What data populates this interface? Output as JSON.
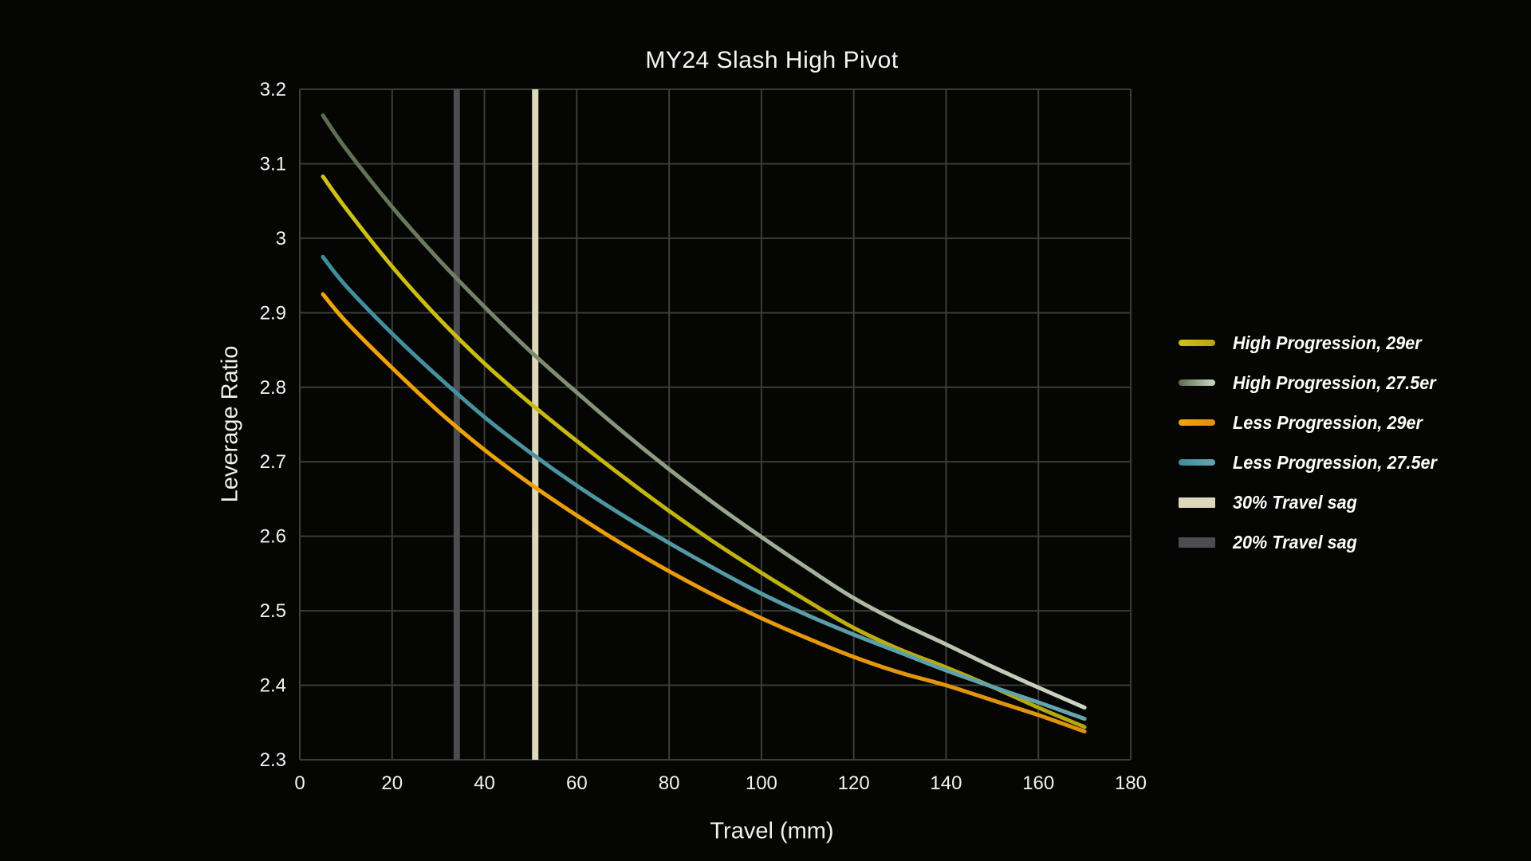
{
  "title": "MY24 Slash High Pivot",
  "chart_data": {
    "type": "line",
    "title": "MY24 Slash High Pivot",
    "xlabel": "Travel (mm)",
    "ylabel": "Leverage Ratio",
    "xlim": [
      0,
      180
    ],
    "ylim": [
      2.3,
      3.2
    ],
    "grid": true,
    "legend_position": "right",
    "background_color": "#050504",
    "grid_color": "#3c3c3a",
    "tick_text_color": "#f2f2ef",
    "xticks": [
      "0",
      "20",
      "40",
      "60",
      "80",
      "100",
      "120",
      "140",
      "160",
      "180"
    ],
    "yticks": [
      "3.2",
      "3.1",
      "3",
      "2.9",
      "2.8",
      "2.7",
      "2.6",
      "2.5",
      "2.4",
      "2.3"
    ],
    "x": [
      5,
      10,
      20,
      30,
      40,
      50,
      60,
      70,
      80,
      90,
      100,
      110,
      120,
      130,
      140,
      150,
      160,
      170
    ],
    "series": [
      {
        "name": "High Progression, 29er",
        "color_start": "#d0c112",
        "color_end": "#b3a70c",
        "values": [
          3.083,
          3.04,
          2.962,
          2.893,
          2.832,
          2.778,
          2.728,
          2.68,
          2.634,
          2.591,
          2.551,
          2.513,
          2.477,
          2.448,
          2.424,
          2.398,
          2.37,
          2.344
        ]
      },
      {
        "name": "High Progression, 27.5er",
        "color_start": "#5b6e4e",
        "color_end": "#cdd7c4",
        "values": [
          3.165,
          3.12,
          3.042,
          2.972,
          2.908,
          2.848,
          2.793,
          2.74,
          2.69,
          2.643,
          2.599,
          2.557,
          2.517,
          2.484,
          2.455,
          2.425,
          2.397,
          2.37
        ]
      },
      {
        "name": "Less Progression, 29er",
        "color_start": "#f1a40b",
        "color_end": "#de920e",
        "values": [
          2.925,
          2.888,
          2.826,
          2.768,
          2.716,
          2.67,
          2.628,
          2.589,
          2.553,
          2.52,
          2.49,
          2.463,
          2.438,
          2.417,
          2.4,
          2.38,
          2.36,
          2.338
        ]
      },
      {
        "name": "Less Progression, 27.5er",
        "color_start": "#3e8e9c",
        "color_end": "#66a5ad",
        "values": [
          2.975,
          2.936,
          2.872,
          2.814,
          2.76,
          2.712,
          2.668,
          2.628,
          2.591,
          2.556,
          2.523,
          2.494,
          2.468,
          2.444,
          2.42,
          2.398,
          2.377,
          2.355
        ]
      }
    ],
    "vlines": [
      {
        "name": "30% Travel sag",
        "x": 51,
        "color": "#ded8ba",
        "width": 8
      },
      {
        "name": "20% Travel sag",
        "x": 34,
        "color": "#4d4d51",
        "width": 8
      }
    ]
  }
}
